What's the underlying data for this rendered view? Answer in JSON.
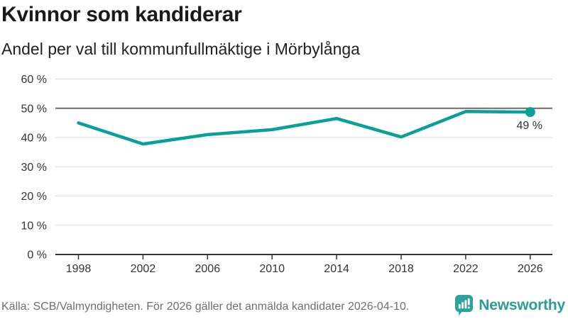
{
  "header": {
    "title": "Kvinnor som kandiderar",
    "subtitle": "Andel per val till kommunfullmäktige i Mörbylånga"
  },
  "chart_data": {
    "type": "line",
    "title": "Kvinnor som kandiderar",
    "subtitle": "Andel per val till kommunfullmäktige i Mörbylånga",
    "x": [
      1998,
      2002,
      2006,
      2010,
      2014,
      2018,
      2022,
      2026
    ],
    "values": [
      45,
      37.8,
      41,
      42.7,
      46.5,
      40.2,
      48.9,
      48.7
    ],
    "unit": "%",
    "ylim": [
      0,
      60
    ],
    "ytick_step": 10,
    "ytick_suffix": " %",
    "grid": true,
    "reference_line": 50,
    "end_label": "49 %",
    "xlabel": "",
    "ylabel": ""
  },
  "footer": {
    "source": "Källa: SCB/Valmyndigheten. För 2026 gäller det anmälda kandidater 2026-04-10.",
    "brand": "Newsworthy"
  },
  "colors": {
    "accent": "#0aa098",
    "brand": "#2aa39c",
    "grid": "#dcdcdc",
    "reference": "#6b6b6b",
    "axis": "#333333",
    "annotation": "#333333"
  }
}
